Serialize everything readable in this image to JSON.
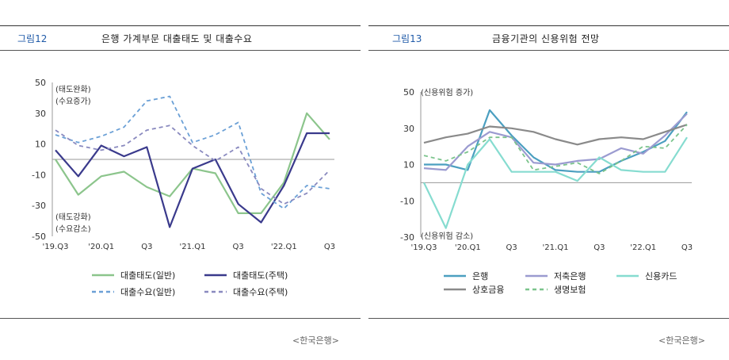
{
  "left": {
    "fig_label": "그림12",
    "title": "은행 가계부문 대출태도 및 대출수요",
    "source": "<한국은행>",
    "chart_data": {
      "type": "line",
      "title": "은행 가계부문 대출태도 및 대출수요",
      "ylim": [
        -50,
        50
      ],
      "yticks": [
        50,
        30,
        10,
        -10,
        -30,
        -50
      ],
      "ytick_labels": [
        "50",
        "30",
        "10",
        "-10",
        "-30",
        "-50"
      ],
      "x_tick_labels": [
        "'19.Q3",
        "'20.Q1",
        "Q3",
        "'21.Q1",
        "Q3",
        "'22.Q1",
        "Q3"
      ],
      "x_tick_positions": [
        0,
        2,
        4,
        6,
        8,
        10,
        12
      ],
      "x": [
        0,
        1,
        2,
        3,
        4,
        5,
        6,
        7,
        8,
        9,
        10,
        11,
        12
      ],
      "annotations": [
        "(태도완화)",
        "(수요증가)",
        "(태도강화)",
        "(수요감소)"
      ],
      "series": [
        {
          "name": "대출태도(일반)",
          "color": "#8cc58c",
          "dash": false,
          "values": [
            0,
            -23,
            -11,
            -8,
            -18,
            -24,
            -6,
            -9,
            -35,
            -35,
            -15,
            30,
            13
          ]
        },
        {
          "name": "대출태도(주택)",
          "color": "#3a3a8c",
          "dash": false,
          "values": [
            6,
            -11,
            9,
            2,
            8,
            -44,
            -6,
            0,
            -29,
            -41,
            -17,
            17,
            17
          ]
        },
        {
          "name": "대출수요(일반)",
          "color": "#6ba0d6",
          "dash": true,
          "values": [
            16,
            11,
            15,
            21,
            38,
            41,
            11,
            16,
            24,
            -22,
            -32,
            -17,
            -19
          ]
        },
        {
          "name": "대출수요(주택)",
          "color": "#8a8abf",
          "dash": true,
          "values": [
            19,
            9,
            6,
            9,
            19,
            22,
            9,
            -1,
            8,
            -19,
            -29,
            -22,
            -7
          ]
        }
      ]
    }
  },
  "right": {
    "fig_label": "그림13",
    "title": "금융기관의 신용위험 전망",
    "source": "<한국은행>",
    "chart_data": {
      "type": "line",
      "title": "금융기관의 신용위험 전망",
      "ylim": [
        -30,
        50
      ],
      "yticks": [
        50,
        30,
        10,
        -10,
        -30
      ],
      "ytick_labels": [
        "50",
        "30",
        "10",
        "-10",
        "-30"
      ],
      "x_tick_labels": [
        "'19.Q3",
        "'20.Q1",
        "Q3",
        "'21.Q1",
        "Q3",
        "'22.Q1",
        "Q3"
      ],
      "x_tick_positions": [
        0,
        2,
        4,
        6,
        8,
        10,
        12
      ],
      "x": [
        0,
        1,
        2,
        3,
        4,
        5,
        6,
        7,
        8,
        9,
        10,
        11,
        12
      ],
      "annotations": [
        "(신용위험 증가)",
        "(신용위험 감소)"
      ],
      "series": [
        {
          "name": "은행",
          "color": "#4b9fc0",
          "dash": false,
          "values": [
            10,
            10,
            7,
            40,
            26,
            14,
            7,
            6,
            6,
            12,
            17,
            23,
            39
          ]
        },
        {
          "name": "저축은행",
          "color": "#9b9bd0",
          "dash": false,
          "values": [
            8,
            7,
            20,
            28,
            25,
            11,
            10,
            12,
            13,
            19,
            16,
            26,
            38
          ]
        },
        {
          "name": "신용카드",
          "color": "#86dcd0",
          "dash": false,
          "values": [
            0,
            -25,
            10,
            24,
            6,
            6,
            6,
            1,
            14,
            7,
            6,
            6,
            25
          ]
        },
        {
          "name": "상호금융",
          "color": "#8a8a8a",
          "dash": false,
          "values": [
            22,
            25,
            27,
            31,
            30,
            28,
            24,
            21,
            24,
            25,
            24,
            28,
            32
          ]
        },
        {
          "name": "생명보험",
          "color": "#7bc48c",
          "dash": true,
          "values": [
            15,
            12,
            17,
            25,
            25,
            7,
            9,
            11,
            5,
            12,
            20,
            19,
            32
          ]
        }
      ]
    }
  }
}
